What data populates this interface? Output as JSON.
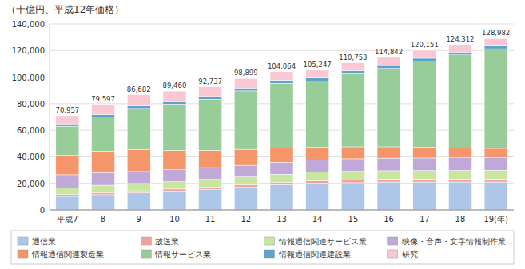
{
  "chart_data": {
    "type": "bar",
    "stacked": true,
    "title": "（十億円、平成12年価格）",
    "categories": [
      "平成7",
      "8",
      "9",
      "10",
      "11",
      "12",
      "13",
      "14",
      "15",
      "16",
      "17",
      "18",
      "19(年)"
    ],
    "series": [
      {
        "name": "通信業",
        "color": "#aec6e8",
        "values": [
          10200,
          11500,
          12800,
          14000,
          15500,
          17000,
          19000,
          20000,
          20500,
          21000,
          21000,
          21000,
          21000
        ]
      },
      {
        "name": "放送業",
        "color": "#f4a0a0",
        "values": [
          1500,
          1600,
          1600,
          1700,
          1700,
          1800,
          1900,
          1900,
          2000,
          2000,
          2100,
          2200,
          2300
        ]
      },
      {
        "name": "情報通信関連サービス業",
        "color": "#c8e6a0",
        "values": [
          5000,
          5500,
          5500,
          5500,
          5800,
          6000,
          6000,
          6500,
          6500,
          6500,
          6500,
          6500,
          6500
        ]
      },
      {
        "name": "映像・音声・文字情報制作業",
        "color": "#c0a8d8",
        "values": [
          9800,
          9500,
          9000,
          9000,
          8800,
          8800,
          9000,
          9200,
          9500,
          9500,
          9500,
          9500,
          9500
        ]
      },
      {
        "name": "情報通信関連製造業",
        "color": "#f4956a",
        "values": [
          14500,
          16000,
          16500,
          14500,
          13000,
          12000,
          10500,
          9500,
          9000,
          8500,
          8000,
          7500,
          7000
        ]
      },
      {
        "name": "情報サービス業",
        "color": "#98cc98",
        "values": [
          22000,
          26000,
          31000,
          35000,
          38500,
          44000,
          49000,
          50000,
          55000,
          59000,
          65000,
          70000,
          75000
        ]
      },
      {
        "name": "情報通信関連建設業",
        "color": "#5ba3c9",
        "values": [
          1800,
          1800,
          1900,
          1900,
          2100,
          2200,
          2300,
          2300,
          2300,
          2200,
          2100,
          2100,
          2100
        ]
      },
      {
        "name": "研究",
        "color": "#f9c8d4",
        "values": [
          6157,
          7697,
          8382,
          7860,
          7337,
          7099,
          6364,
          5847,
          5953,
          6142,
          5951,
          5512,
          5582
        ]
      }
    ],
    "totals": [
      70957,
      79597,
      86682,
      89460,
      92737,
      98899,
      104064,
      105247,
      110753,
      114842,
      120151,
      124312,
      128982
    ],
    "total_labels": [
      "70,957",
      "79,597",
      "86,682",
      "89,460",
      "92,737",
      "98,899",
      "104,064",
      "105,247",
      "110,753",
      "114,842",
      "120,151",
      "124,312",
      "128,982"
    ],
    "ylim": [
      0,
      140000
    ],
    "yticks": [
      0,
      {
        "value": 20000,
        "label": "20,000"
      },
      {
        "value": 40000,
        "label": "40,000"
      },
      {
        "value": 60000,
        "label": "60,000"
      },
      {
        "value": 80000,
        "label": "80,000"
      },
      {
        "value": 100000,
        "label": "100,000"
      },
      {
        "value": 120000,
        "label": "120,000"
      },
      {
        "value": 140000,
        "label": "140,000"
      }
    ],
    "grid": true,
    "legend": "bottom"
  }
}
